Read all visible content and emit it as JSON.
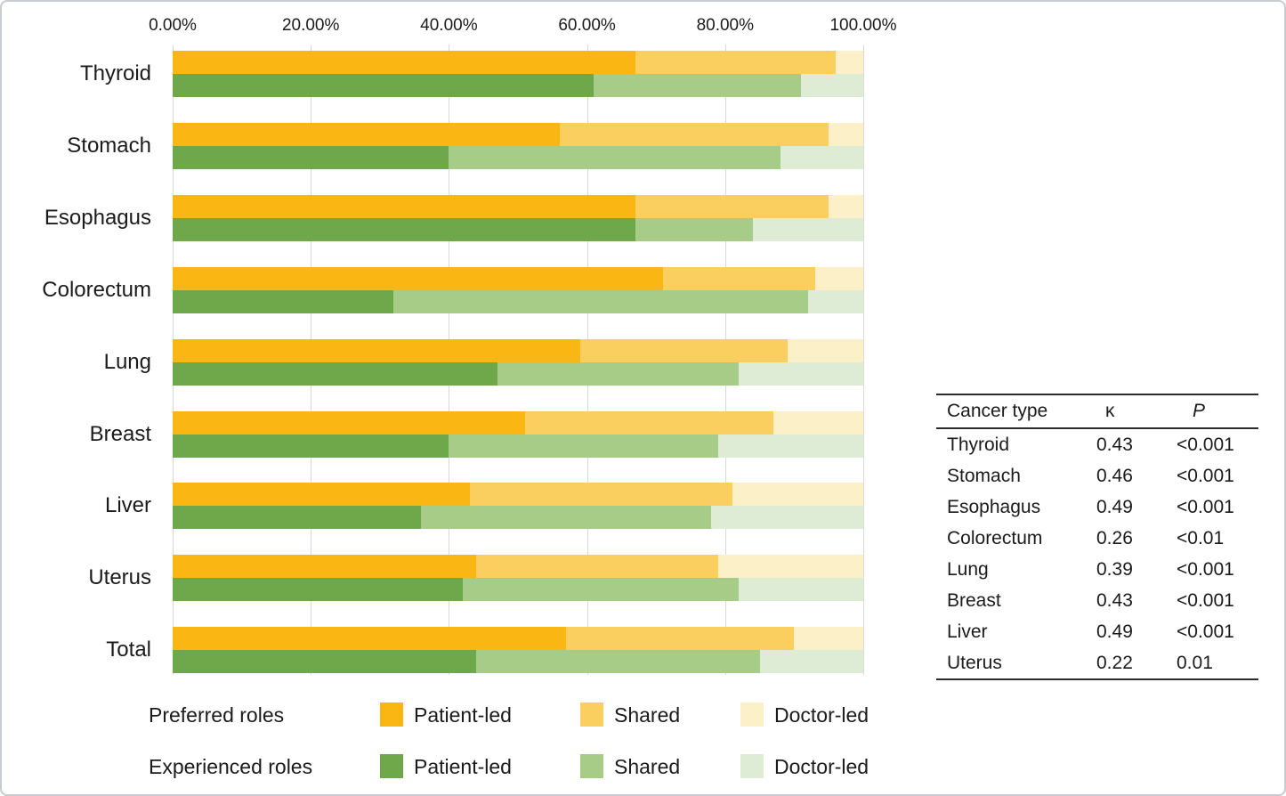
{
  "chart_data": {
    "type": "bar",
    "orientation": "horizontal",
    "stacked": true,
    "title": "",
    "xlabel": "",
    "ylabel": "",
    "x_axis": {
      "position": "top",
      "min": 0,
      "max": 100,
      "ticks": [
        "0.00%",
        "20.00%",
        "40.00%",
        "60.00%",
        "80.00%",
        "100.00%"
      ],
      "grid": true,
      "gridline_color": "#d9d9d9"
    },
    "categories": [
      "Thyroid",
      "Stomach",
      "Esophagus",
      "Colorectum",
      "Lung",
      "Breast",
      "Liver",
      "Uterus",
      "Total"
    ],
    "series_groups": [
      {
        "name": "Preferred roles",
        "segments": [
          "Patient-led",
          "Shared",
          "Doctor-led"
        ],
        "colors": [
          "#FAB714",
          "#FBCE60",
          "#FCF0C9"
        ],
        "values": [
          [
            67,
            29,
            4
          ],
          [
            56,
            39,
            5
          ],
          [
            67,
            28,
            5
          ],
          [
            71,
            22,
            7
          ],
          [
            59,
            30,
            11
          ],
          [
            51,
            36,
            13
          ],
          [
            43,
            38,
            19
          ],
          [
            44,
            35,
            21
          ],
          [
            57,
            33,
            10
          ]
        ]
      },
      {
        "name": "Experienced roles",
        "segments": [
          "Patient-led",
          "Shared",
          "Doctor-led"
        ],
        "colors": [
          "#6EA84A",
          "#A6CC88",
          "#DEECD6"
        ],
        "values": [
          [
            61,
            30,
            9
          ],
          [
            40,
            48,
            12
          ],
          [
            67,
            17,
            16
          ],
          [
            32,
            60,
            8
          ],
          [
            47,
            35,
            18
          ],
          [
            40,
            39,
            21
          ],
          [
            36,
            42,
            22
          ],
          [
            42,
            40,
            18
          ],
          [
            44,
            41,
            15
          ]
        ]
      }
    ]
  },
  "legend": {
    "rows": [
      {
        "label": "Preferred roles",
        "items": [
          {
            "label": "Patient-led",
            "color": "#FAB714"
          },
          {
            "label": "Shared",
            "color": "#FBCE60"
          },
          {
            "label": "Doctor-led",
            "color": "#FCF0C9"
          }
        ]
      },
      {
        "label": "Experienced roles",
        "items": [
          {
            "label": "Patient-led",
            "color": "#6EA84A"
          },
          {
            "label": "Shared",
            "color": "#A6CC88"
          },
          {
            "label": "Doctor-led",
            "color": "#DEECD6"
          }
        ]
      }
    ]
  },
  "stats_table": {
    "headers": [
      "Cancer type",
      "κ",
      "P"
    ],
    "rows": [
      [
        "Thyroid",
        "0.43",
        "<0.001"
      ],
      [
        "Stomach",
        "0.46",
        "<0.001"
      ],
      [
        "Esophagus",
        "0.49",
        "<0.001"
      ],
      [
        "Colorectum",
        "0.26",
        "<0.01"
      ],
      [
        "Lung",
        "0.39",
        "<0.001"
      ],
      [
        "Breast",
        "0.43",
        "<0.001"
      ],
      [
        "Liver",
        "0.49",
        "<0.001"
      ],
      [
        "Uterus",
        "0.22",
        "0.01"
      ]
    ]
  }
}
